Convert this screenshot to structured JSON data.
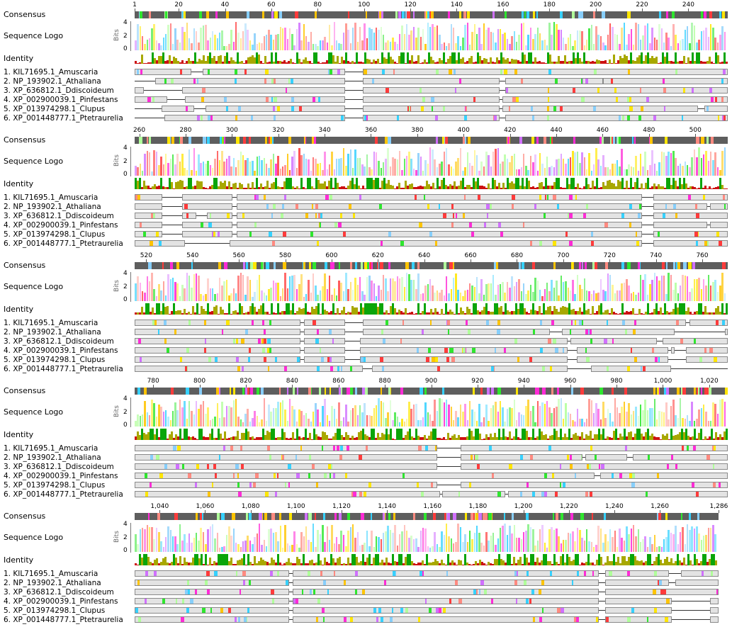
{
  "track_labels": {
    "consensus": "Consensus",
    "logo": "Sequence Logo",
    "identity": "Identity"
  },
  "logo_axis": {
    "title": "Bits",
    "max": "4",
    "mid": "2",
    "min": "0"
  },
  "sequences": [
    "1. KIL71695.1_Amuscaria",
    "2. NP_193902.1_Athaliana",
    "3. XP_636812.1_Ddiscoideum",
    "4. XP_002900039.1_Pinfestans",
    "5. XP_013974298.1_Clupus",
    "6. XP_001448777.1_Ptetraurelia"
  ],
  "blocks": [
    {
      "ticks": [
        "1",
        "20",
        "40",
        "60",
        "80",
        "100",
        "120",
        "140",
        "160",
        "180",
        "200",
        "220",
        "240"
      ],
      "positions": [
        1,
        20,
        40,
        60,
        80,
        100,
        120,
        140,
        160,
        180,
        200,
        220,
        240
      ],
      "start": 1,
      "end": 257
    },
    {
      "ticks": [
        "260",
        "280",
        "300",
        "320",
        "340",
        "360",
        "380",
        "400",
        "420",
        "440",
        "460",
        "480",
        "500"
      ],
      "positions": [
        260,
        280,
        300,
        320,
        340,
        360,
        380,
        400,
        420,
        440,
        460,
        480,
        500
      ],
      "start": 258,
      "end": 514
    },
    {
      "ticks": [
        "520",
        "540",
        "560",
        "580",
        "600",
        "620",
        "640",
        "660",
        "680",
        "700",
        "720",
        "740",
        "760"
      ],
      "positions": [
        520,
        540,
        560,
        580,
        600,
        620,
        640,
        660,
        680,
        700,
        720,
        740,
        760
      ],
      "start": 515,
      "end": 771
    },
    {
      "ticks": [
        "780",
        "800",
        "820",
        "840",
        "860",
        "880",
        "900",
        "920",
        "940",
        "960",
        "980",
        "1,000",
        "1,020"
      ],
      "positions": [
        780,
        800,
        820,
        840,
        860,
        880,
        900,
        920,
        940,
        960,
        980,
        1000,
        1020
      ],
      "start": 772,
      "end": 1028
    },
    {
      "ticks": [
        "1,040",
        "1,060",
        "1,080",
        "1,100",
        "1,120",
        "1,140",
        "1,160",
        "1,180",
        "1,200",
        "1,220",
        "1,240",
        "1,260",
        "1,286"
      ],
      "positions": [
        1040,
        1060,
        1080,
        1100,
        1120,
        1140,
        1160,
        1180,
        1200,
        1220,
        1240,
        1260,
        1286
      ],
      "start": 1029,
      "end": 1286
    }
  ],
  "colors": {
    "consensus": "#5e5e5e",
    "identity_high": "#0aa50a",
    "identity_mid": "#a8a800",
    "identity_low": "#cc1111",
    "residue_palette": [
      "#ff2bd6",
      "#ffe600",
      "#36d1ff",
      "#ff8a80",
      "#2ee62e",
      "#87cefa",
      "#ffc400",
      "#d070ff",
      "#ff3b3b",
      "#b0ff9a"
    ]
  }
}
